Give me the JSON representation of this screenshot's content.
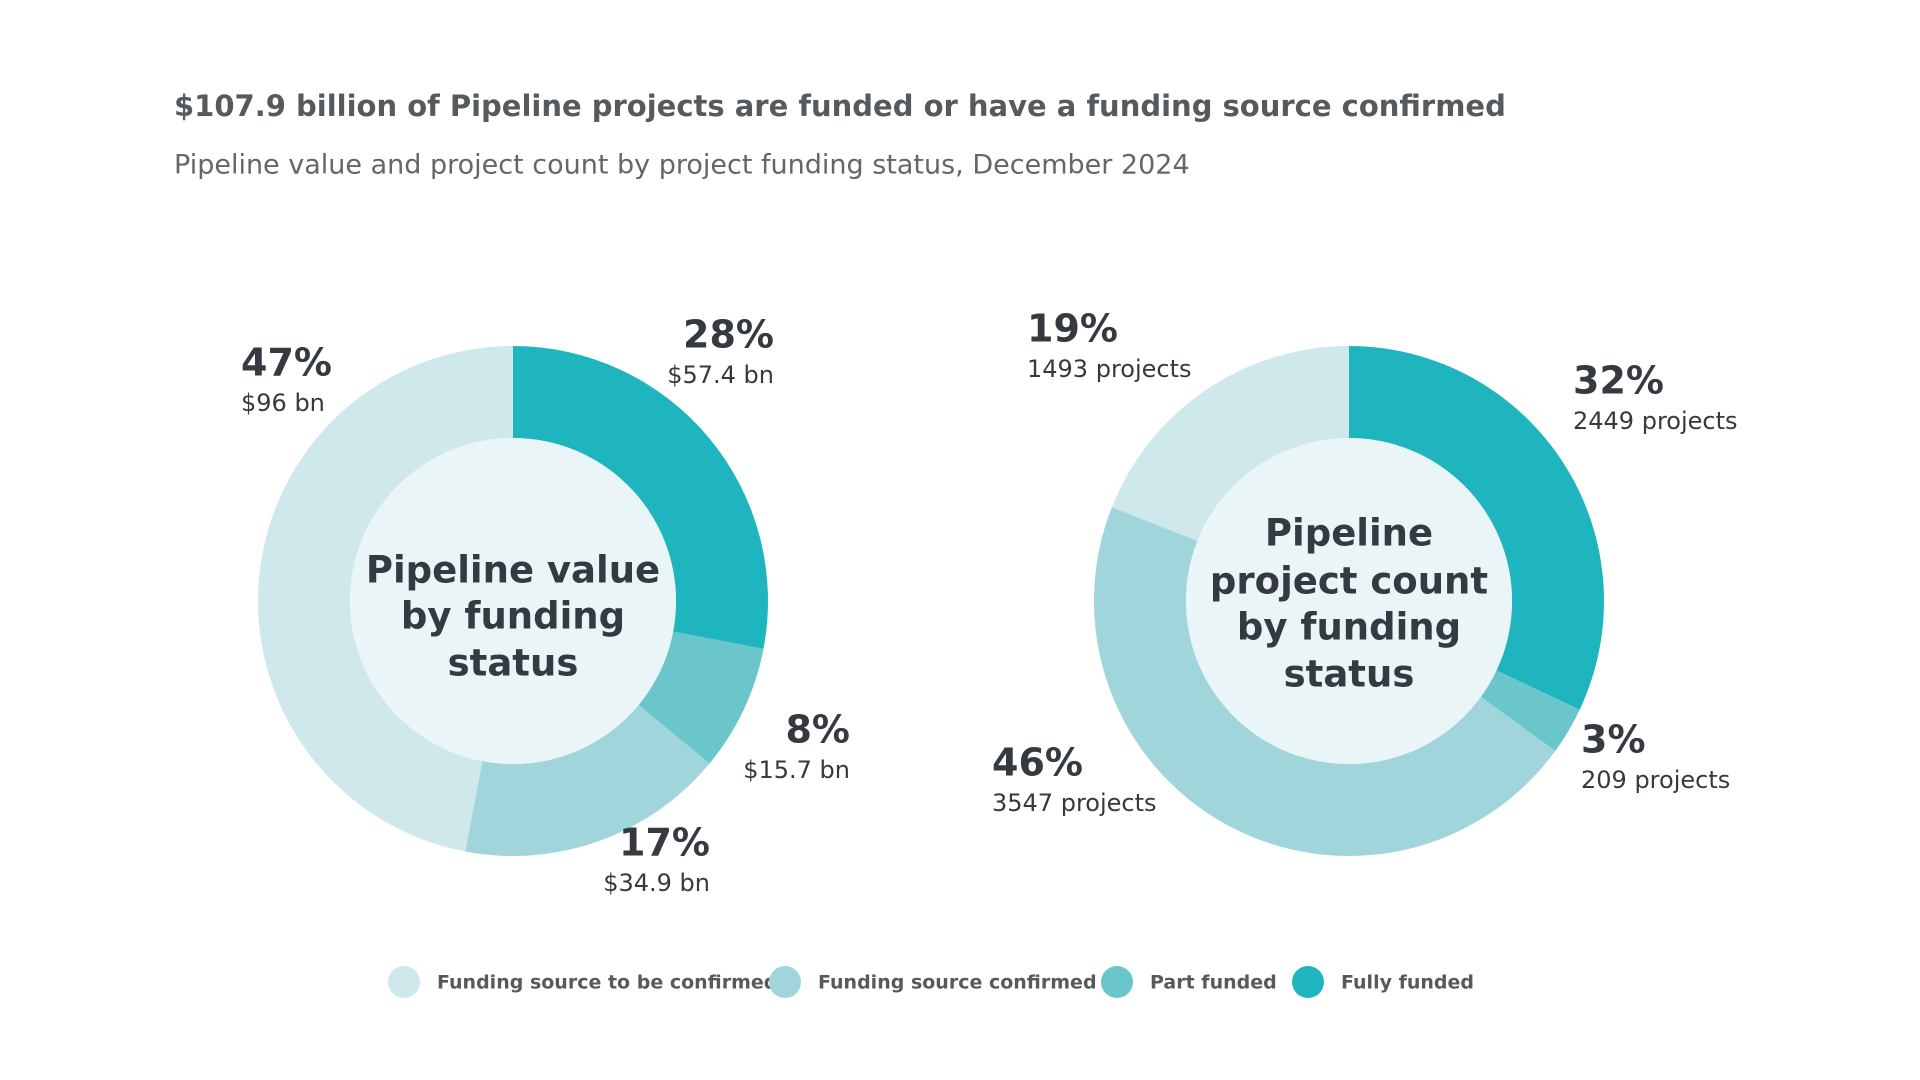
{
  "title": "$107.9 billion of Pipeline projects are funded or have a funding source confirmed",
  "subtitle": "Pipeline value and project count by project funding status, December 2024",
  "chart_data": [
    {
      "type": "donut",
      "center_label": [
        "Pipeline value",
        "by funding",
        "status"
      ],
      "categories": [
        "Funding source to be confirmed",
        "Funding source confirmed",
        "Part funded",
        "Fully funded"
      ],
      "colors": [
        "#cfe8ec",
        "#a0d6db",
        "#6bc6cc",
        "#1fb5bf"
      ],
      "values": [
        47,
        17,
        8,
        28
      ],
      "value_labels": [
        "47%",
        "17%",
        "8%",
        "28%"
      ],
      "detail_labels": [
        "$96 bn",
        "$34.9 bn",
        "$15.7 bn",
        "$57.4 bn"
      ],
      "legend": "bottom"
    },
    {
      "type": "donut",
      "center_label": [
        "Pipeline",
        "project count",
        "by funding",
        "status"
      ],
      "categories": [
        "Funding source to be confirmed",
        "Funding source confirmed",
        "Part funded",
        "Fully funded"
      ],
      "colors": [
        "#cfe8ec",
        "#a0d6db",
        "#6bc6cc",
        "#1fb5bf"
      ],
      "values": [
        19,
        46,
        3,
        32
      ],
      "value_labels": [
        "19%",
        "46%",
        "3%",
        "32%"
      ],
      "detail_labels": [
        "1493 projects",
        "3547 projects",
        "209 projects",
        "2449 projects"
      ],
      "legend": "bottom"
    }
  ]
}
